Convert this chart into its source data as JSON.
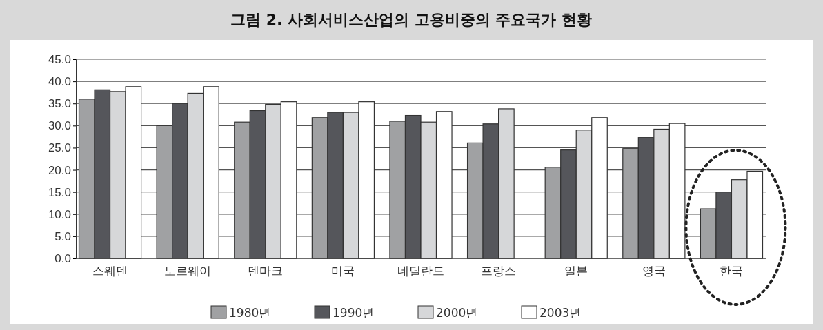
{
  "chart_data": {
    "type": "bar",
    "title": "그림 2. 사회서비스산업의 고용비중의 주요국가 현황",
    "categories": [
      "스웨덴",
      "노르웨이",
      "덴마크",
      "미국",
      "네덜란드",
      "프랑스",
      "일본",
      "영국",
      "한국"
    ],
    "series": [
      {
        "name": "1980년",
        "color": "#a0a1a3",
        "values": [
          36.0,
          30.0,
          30.8,
          31.8,
          31.0,
          26.1,
          20.6,
          24.8,
          11.2
        ]
      },
      {
        "name": "1990년",
        "color": "#55565b",
        "values": [
          38.1,
          35.0,
          33.4,
          33.0,
          32.3,
          30.4,
          24.5,
          27.3,
          15.0
        ]
      },
      {
        "name": "2000년",
        "color": "#d6d7d9",
        "values": [
          37.7,
          37.3,
          34.8,
          33.0,
          30.8,
          33.8,
          29.0,
          29.2,
          17.8
        ]
      },
      {
        "name": "2003년",
        "color": "#ffffff",
        "values": [
          38.8,
          38.8,
          35.4,
          35.4,
          33.2,
          null,
          31.8,
          30.5,
          19.7
        ]
      }
    ],
    "ylim": [
      0,
      45
    ],
    "yticks": [
      {
        "value": 0,
        "label": "0.0"
      },
      {
        "value": 5,
        "label": "5.0"
      },
      {
        "value": 10,
        "label": "10.0"
      },
      {
        "value": 15,
        "label": "15.0"
      },
      {
        "value": 20,
        "label": "20.0"
      },
      {
        "value": 25,
        "label": "25.0"
      },
      {
        "value": 30,
        "label": "30.0"
      },
      {
        "value": 35,
        "label": "35.0"
      },
      {
        "value": 40,
        "label": "40.0"
      },
      {
        "value": 45,
        "label": "45.0"
      }
    ],
    "grid": "y",
    "legend": "bottom"
  }
}
